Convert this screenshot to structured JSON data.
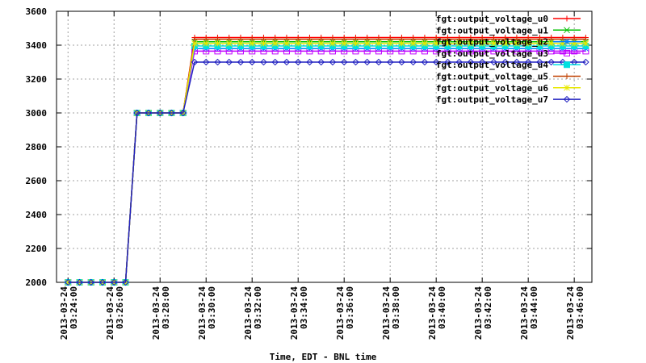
{
  "chart_data": {
    "type": "line",
    "xlabel": "Time, EDT - BNL time",
    "x": [
      "2013-03-24 03:24:00",
      "2013-03-24 03:24:30",
      "2013-03-24 03:25:00",
      "2013-03-24 03:25:30",
      "2013-03-24 03:26:00",
      "2013-03-24 03:26:30",
      "2013-03-24 03:27:00",
      "2013-03-24 03:27:30",
      "2013-03-24 03:28:00",
      "2013-03-24 03:28:30",
      "2013-03-24 03:29:00",
      "2013-03-24 03:29:30",
      "2013-03-24 03:30:00",
      "2013-03-24 03:30:30",
      "2013-03-24 03:31:00",
      "2013-03-24 03:31:30",
      "2013-03-24 03:32:00",
      "2013-03-24 03:32:30",
      "2013-03-24 03:33:00",
      "2013-03-24 03:33:30",
      "2013-03-24 03:34:00",
      "2013-03-24 03:34:30",
      "2013-03-24 03:35:00",
      "2013-03-24 03:35:30",
      "2013-03-24 03:36:00",
      "2013-03-24 03:36:30",
      "2013-03-24 03:37:00",
      "2013-03-24 03:37:30",
      "2013-03-24 03:38:00",
      "2013-03-24 03:38:30",
      "2013-03-24 03:39:00",
      "2013-03-24 03:39:30",
      "2013-03-24 03:40:00",
      "2013-03-24 03:40:30",
      "2013-03-24 03:41:00",
      "2013-03-24 03:41:30",
      "2013-03-24 03:42:00",
      "2013-03-24 03:42:30",
      "2013-03-24 03:43:00",
      "2013-03-24 03:43:30",
      "2013-03-24 03:44:00",
      "2013-03-24 03:44:30",
      "2013-03-24 03:45:00",
      "2013-03-24 03:45:30",
      "2013-03-24 03:46:00",
      "2013-03-24 03:46:30"
    ],
    "series": [
      {
        "name": "fgt:output_voltage_u0",
        "color": "#ff0000",
        "marker": "plus",
        "values": [
          2000,
          2000,
          2000,
          2000,
          2000,
          2000,
          3000,
          3000,
          3000,
          3000,
          3000,
          3445,
          3445,
          3445,
          3445,
          3445,
          3445,
          3445,
          3445,
          3445,
          3445,
          3445,
          3445,
          3445,
          3445,
          3445,
          3445,
          3445,
          3445,
          3445,
          3445,
          3445,
          3445,
          3445,
          3445,
          3445,
          3445,
          3445,
          3445,
          3445,
          3445,
          3445,
          3445,
          3445,
          3445,
          3445
        ]
      },
      {
        "name": "fgt:output_voltage_u1",
        "color": "#00c000",
        "marker": "cross",
        "values": [
          2000,
          2000,
          2000,
          2000,
          2000,
          2000,
          3000,
          3000,
          3000,
          3000,
          3000,
          3420,
          3420,
          3420,
          3420,
          3420,
          3420,
          3420,
          3420,
          3420,
          3420,
          3420,
          3420,
          3420,
          3420,
          3420,
          3420,
          3420,
          3420,
          3420,
          3420,
          3420,
          3420,
          3420,
          3420,
          3420,
          3420,
          3420,
          3420,
          3420,
          3420,
          3420,
          3420,
          3420,
          3420,
          3420
        ]
      },
      {
        "name": "fgt:output_voltage_u2",
        "color": "#0080ff",
        "marker": "star",
        "values": [
          2000,
          2000,
          2000,
          2000,
          2000,
          2000,
          3000,
          3000,
          3000,
          3000,
          3000,
          3380,
          3380,
          3380,
          3380,
          3380,
          3380,
          3380,
          3380,
          3380,
          3380,
          3380,
          3380,
          3380,
          3380,
          3380,
          3380,
          3380,
          3380,
          3380,
          3380,
          3380,
          3380,
          3380,
          3380,
          3380,
          3380,
          3380,
          3380,
          3380,
          3380,
          3380,
          3380,
          3380,
          3380,
          3380
        ]
      },
      {
        "name": "fgt:output_voltage_u3",
        "color": "#c000ff",
        "marker": "box",
        "values": [
          2000,
          2000,
          2000,
          2000,
          2000,
          2000,
          3000,
          3000,
          3000,
          3000,
          3000,
          3365,
          3365,
          3365,
          3365,
          3365,
          3365,
          3365,
          3365,
          3365,
          3365,
          3365,
          3365,
          3365,
          3365,
          3365,
          3365,
          3365,
          3365,
          3365,
          3365,
          3365,
          3365,
          3365,
          3365,
          3365,
          3365,
          3365,
          3365,
          3365,
          3365,
          3365,
          3365,
          3365,
          3365,
          3365
        ]
      },
      {
        "name": "fgt:output_voltage_u4",
        "color": "#00e0e0",
        "marker": "fbox",
        "values": [
          2000,
          2000,
          2000,
          2000,
          2000,
          2000,
          3000,
          3000,
          3000,
          3000,
          3000,
          3395,
          3395,
          3395,
          3395,
          3395,
          3395,
          3395,
          3395,
          3395,
          3395,
          3395,
          3395,
          3395,
          3395,
          3395,
          3395,
          3395,
          3395,
          3395,
          3395,
          3395,
          3395,
          3395,
          3395,
          3395,
          3395,
          3395,
          3395,
          3395,
          3395,
          3395,
          3395,
          3395,
          3395,
          3395
        ]
      },
      {
        "name": "fgt:output_voltage_u5",
        "color": "#c04000",
        "marker": "plus",
        "values": [
          2000,
          2000,
          2000,
          2000,
          2000,
          2000,
          3000,
          3000,
          3000,
          3000,
          3000,
          3435,
          3435,
          3435,
          3435,
          3435,
          3435,
          3435,
          3435,
          3435,
          3435,
          3435,
          3435,
          3435,
          3435,
          3435,
          3435,
          3435,
          3435,
          3435,
          3435,
          3435,
          3435,
          3435,
          3435,
          3435,
          3435,
          3435,
          3435,
          3435,
          3435,
          3435,
          3435,
          3435,
          3435,
          3435
        ]
      },
      {
        "name": "fgt:output_voltage_u6",
        "color": "#e8e800",
        "marker": "star",
        "values": [
          2000,
          2000,
          2000,
          2000,
          2000,
          2000,
          3000,
          3000,
          3000,
          3000,
          3000,
          3410,
          3410,
          3410,
          3410,
          3410,
          3410,
          3410,
          3410,
          3410,
          3410,
          3410,
          3410,
          3410,
          3410,
          3410,
          3410,
          3410,
          3410,
          3410,
          3410,
          3410,
          3410,
          3410,
          3410,
          3410,
          3410,
          3410,
          3410,
          3410,
          3410,
          3410,
          3410,
          3410,
          3410,
          3410
        ]
      },
      {
        "name": "fgt:output_voltage_u7",
        "color": "#2020c0",
        "marker": "diamond",
        "values": [
          2000,
          2000,
          2000,
          2000,
          2000,
          2000,
          3000,
          3000,
          3000,
          3000,
          3000,
          3300,
          3300,
          3300,
          3300,
          3300,
          3300,
          3300,
          3300,
          3300,
          3300,
          3300,
          3300,
          3300,
          3300,
          3300,
          3300,
          3300,
          3300,
          3300,
          3300,
          3300,
          3300,
          3300,
          3300,
          3300,
          3300,
          3300,
          3300,
          3300,
          3300,
          3300,
          3300,
          3300,
          3300,
          3300
        ]
      }
    ],
    "xlim": [
      "2013-03-24 03:23:30",
      "2013-03-24 03:46:46"
    ],
    "xticks": [
      "2013-03-24 03:24:00",
      "2013-03-24 03:26:00",
      "2013-03-24 03:28:00",
      "2013-03-24 03:30:00",
      "2013-03-24 03:32:00",
      "2013-03-24 03:34:00",
      "2013-03-24 03:36:00",
      "2013-03-24 03:38:00",
      "2013-03-24 03:40:00",
      "2013-03-24 03:42:00",
      "2013-03-24 03:44:00",
      "2013-03-24 03:46:00"
    ],
    "ylim": [
      2000,
      3600
    ],
    "yticks": [
      2000,
      2200,
      2400,
      2600,
      2800,
      3000,
      3200,
      3400,
      3600
    ],
    "grid": true,
    "legend": "top-right"
  }
}
